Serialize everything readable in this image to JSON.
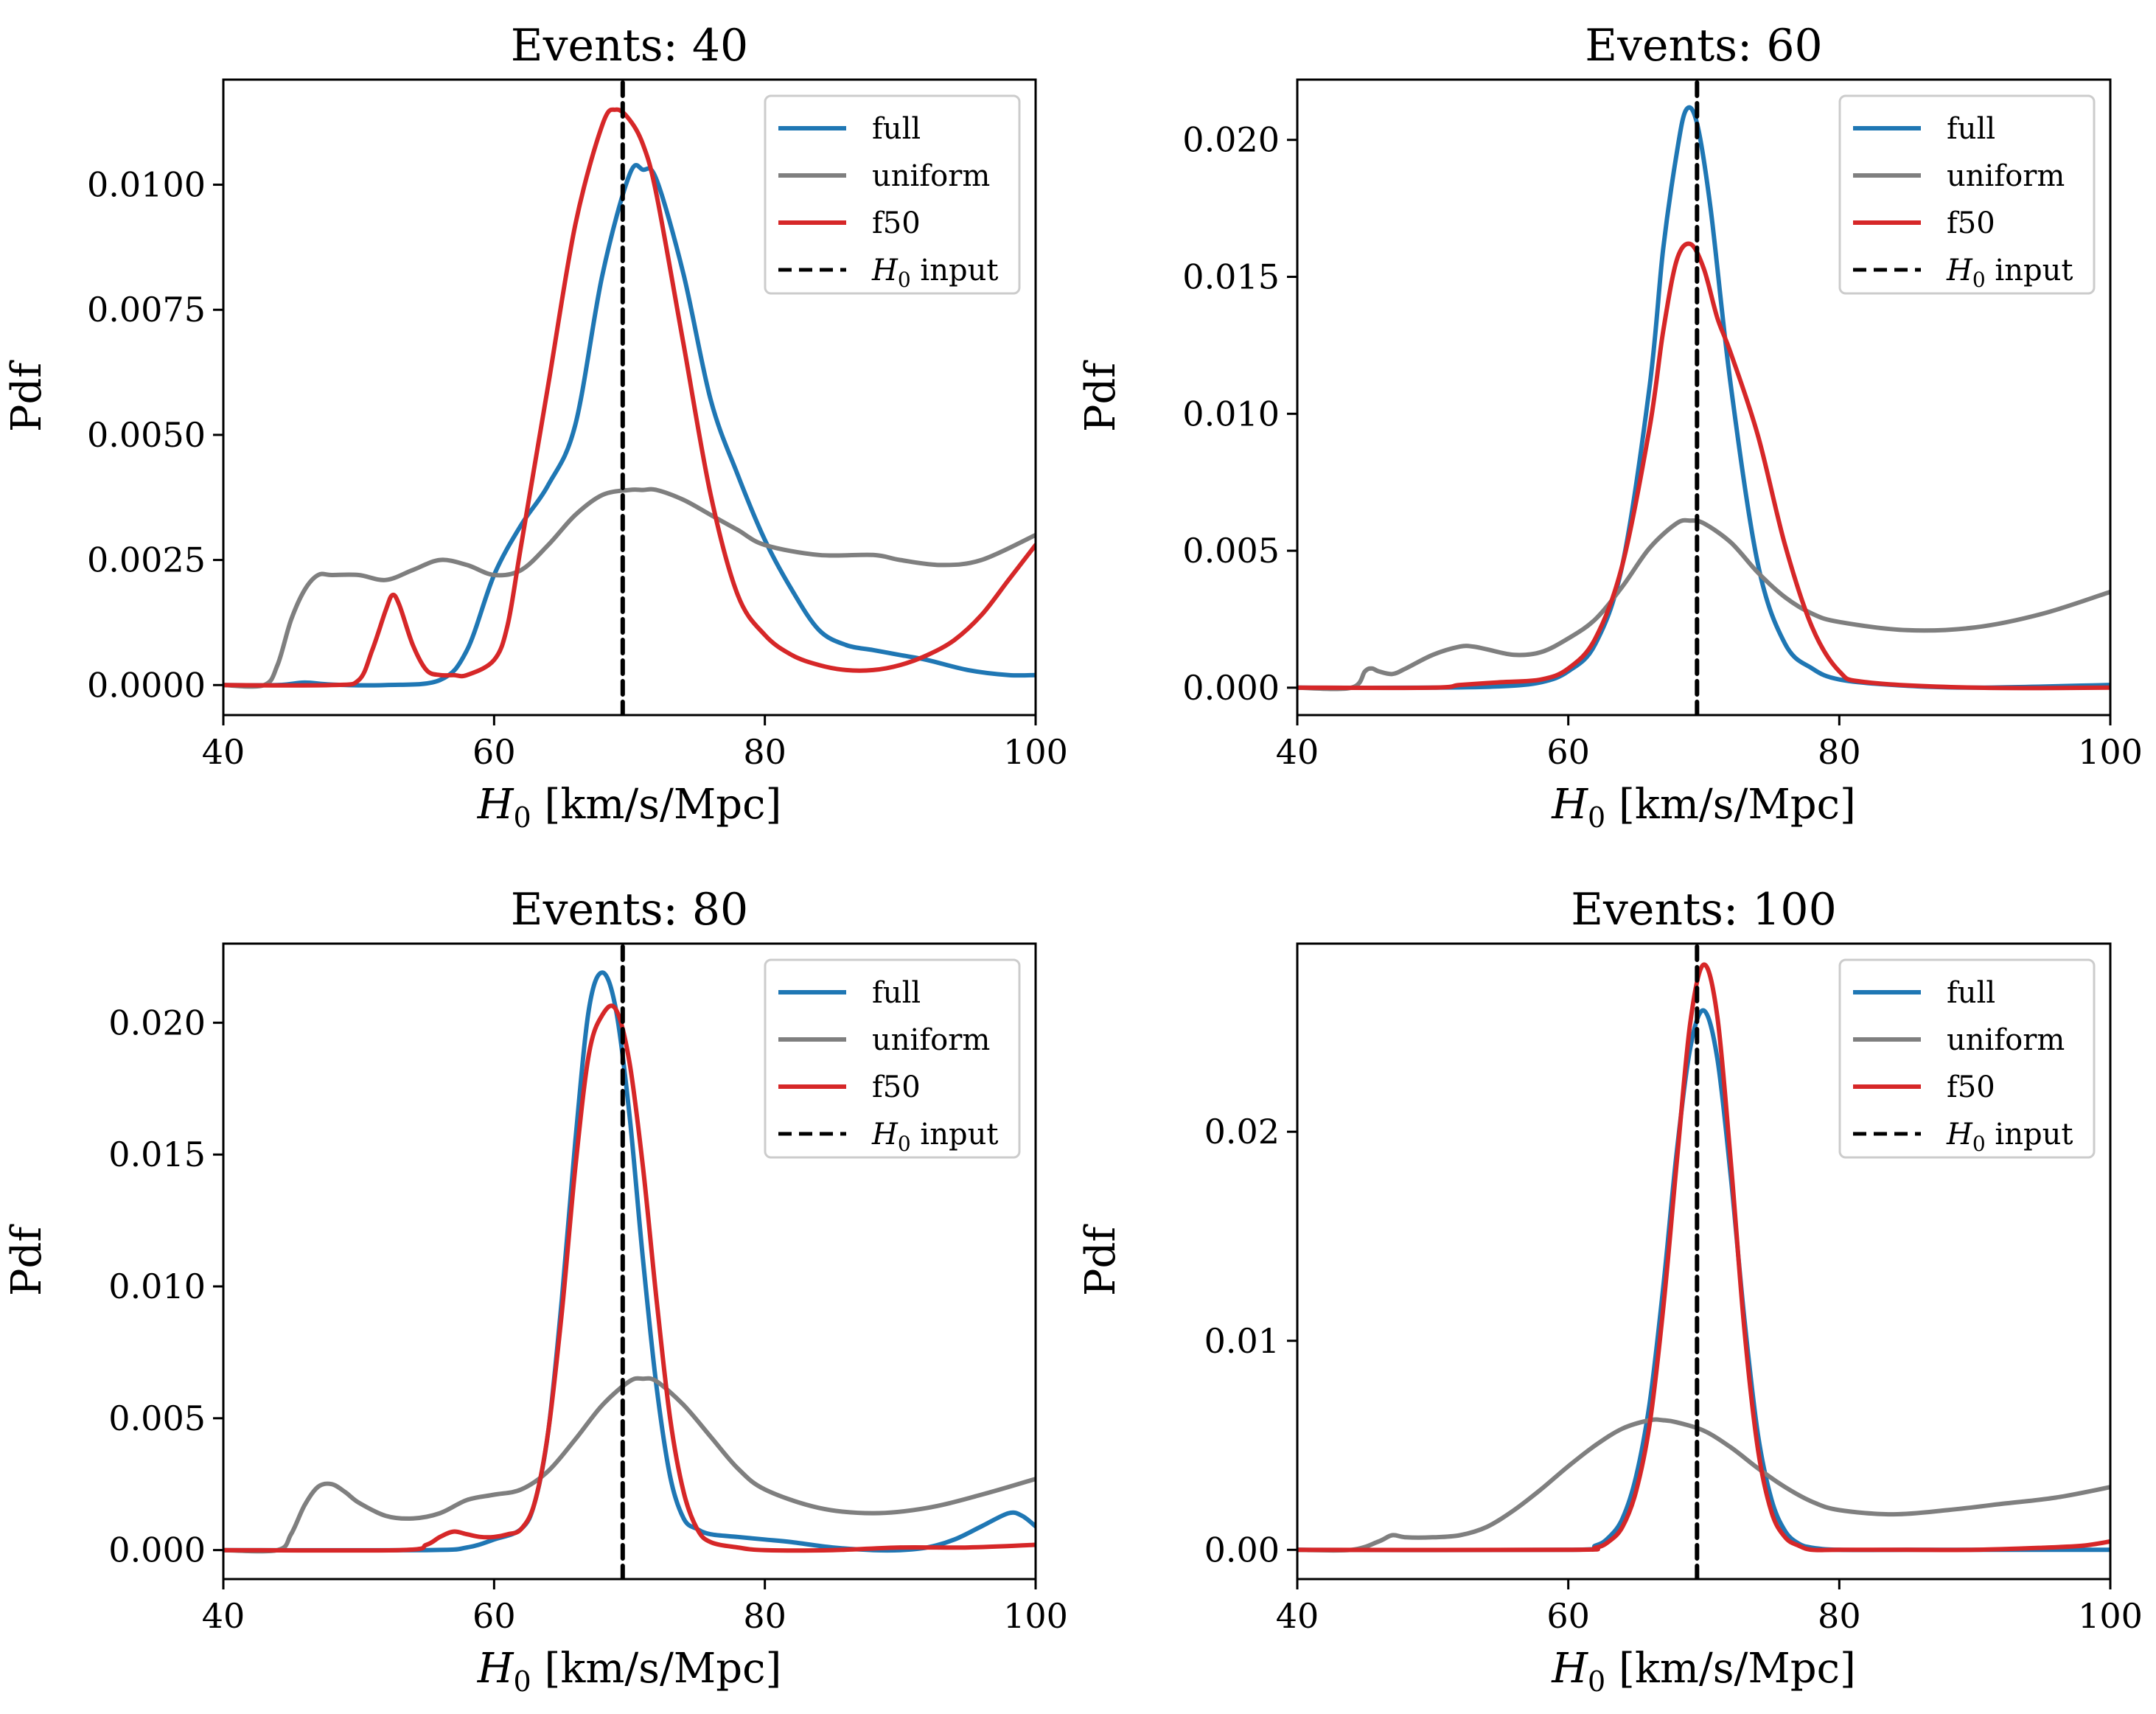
{
  "chart_data": [
    {
      "type": "line",
      "title": "Events: 40",
      "xlabel": "H_0 [km/s/Mpc]",
      "xlabel_main": "H",
      "xlabel_sub": "0",
      "xlabel_units": "[km/s/Mpc]",
      "ylabel": "Pdf",
      "xlim": [
        40,
        100
      ],
      "ylim": [
        -0.0006,
        0.0121
      ],
      "xticks": [
        40,
        60,
        80,
        100
      ],
      "xtick_labels": [
        "40",
        "60",
        "80",
        "100"
      ],
      "yticks": [
        0,
        0.0025,
        0.005,
        0.0075,
        0.01
      ],
      "ytick_labels": [
        "0.0000",
        "0.0025",
        "0.0050",
        "0.0075",
        "0.0100"
      ],
      "h0_input": 69.5,
      "legend_position": "top-right",
      "series": [
        {
          "name": "full",
          "color": "#1f77b4",
          "dashed": false,
          "x": [
            40,
            44,
            46,
            48,
            52,
            56,
            58,
            60,
            62,
            64,
            66,
            68,
            70,
            71,
            72,
            74,
            76,
            78,
            80,
            82,
            84,
            86,
            88,
            90,
            92,
            95,
            98,
            100
          ],
          "y": [
            0,
            0,
            5e-05,
            1e-05,
            0,
            0.0001,
            0.0007,
            0.0022,
            0.0032,
            0.004,
            0.0052,
            0.0082,
            0.0102,
            0.0103,
            0.0101,
            0.0082,
            0.0057,
            0.0042,
            0.0029,
            0.0019,
            0.0011,
            0.0008,
            0.0007,
            0.0006,
            0.0005,
            0.0003,
            0.0002,
            0.0002
          ]
        },
        {
          "name": "uniform",
          "color": "#7f7f7f",
          "dashed": false,
          "x": [
            40,
            43,
            44,
            45,
            46,
            47,
            48,
            50,
            52,
            54,
            56,
            58,
            60,
            62,
            64,
            66,
            68,
            70,
            71,
            72,
            74,
            76,
            78,
            80,
            84,
            88,
            90,
            93,
            96,
            100
          ],
          "y": [
            0,
            0,
            0.0004,
            0.0013,
            0.0019,
            0.0022,
            0.0022,
            0.0022,
            0.0021,
            0.0023,
            0.0025,
            0.0024,
            0.0022,
            0.0023,
            0.0028,
            0.0034,
            0.0038,
            0.0039,
            0.0039,
            0.0039,
            0.0037,
            0.0034,
            0.0031,
            0.0028,
            0.0026,
            0.0026,
            0.0025,
            0.0024,
            0.0025,
            0.003
          ]
        },
        {
          "name": "f50",
          "color": "#d62728",
          "dashed": false,
          "x": [
            40,
            48,
            50,
            51,
            52,
            52.5,
            53,
            54,
            55,
            56,
            57,
            58,
            60,
            61,
            62,
            64,
            66,
            68,
            69,
            70,
            71,
            72,
            74,
            76,
            78,
            80,
            82,
            84,
            86,
            88,
            90,
            92,
            94,
            96,
            98,
            100
          ],
          "y": [
            0,
            0,
            0.0001,
            0.0007,
            0.0015,
            0.0018,
            0.0016,
            0.0008,
            0.0003,
            0.0002,
            0.0002,
            0.0002,
            0.0005,
            0.0012,
            0.0028,
            0.006,
            0.0092,
            0.0112,
            0.0115,
            0.0113,
            0.0108,
            0.0098,
            0.0068,
            0.0038,
            0.0018,
            0.001,
            0.0006,
            0.0004,
            0.0003,
            0.0003,
            0.0004,
            0.0006,
            0.0009,
            0.0014,
            0.0021,
            0.0028
          ]
        },
        {
          "name": "H_0 input",
          "color": "#000000",
          "dashed": true,
          "x": [
            69.5,
            69.5
          ],
          "y": [
            -0.0006,
            0.0121
          ]
        }
      ]
    },
    {
      "type": "line",
      "title": "Events: 60",
      "xlabel": "H_0 [km/s/Mpc]",
      "xlabel_main": "H",
      "xlabel_sub": "0",
      "xlabel_units": "[km/s/Mpc]",
      "ylabel": "Pdf",
      "xlim": [
        40,
        100
      ],
      "ylim": [
        -0.001,
        0.0222
      ],
      "xticks": [
        40,
        60,
        80,
        100
      ],
      "xtick_labels": [
        "40",
        "60",
        "80",
        "100"
      ],
      "yticks": [
        0,
        0.005,
        0.01,
        0.015,
        0.02
      ],
      "ytick_labels": [
        "0.000",
        "0.005",
        "0.010",
        "0.015",
        "0.020"
      ],
      "h0_input": 69.5,
      "legend_position": "top-right",
      "series": [
        {
          "name": "full",
          "color": "#1f77b4",
          "dashed": false,
          "x": [
            40,
            50,
            55,
            58,
            60,
            62,
            64,
            66,
            67,
            68,
            68.7,
            69.5,
            70.5,
            72,
            74,
            76,
            78,
            80,
            84,
            90,
            100
          ],
          "y": [
            0,
            0,
            5e-05,
            0.0002,
            0.0006,
            0.0016,
            0.0045,
            0.011,
            0.016,
            0.0195,
            0.0211,
            0.0206,
            0.0175,
            0.011,
            0.0045,
            0.0016,
            0.0007,
            0.0003,
            0.0001,
            0,
            0.0001
          ]
        },
        {
          "name": "uniform",
          "color": "#7f7f7f",
          "dashed": false,
          "x": [
            40,
            44,
            45,
            45.5,
            46,
            47,
            48,
            50,
            52,
            53,
            54,
            56,
            58,
            60,
            62,
            64,
            66,
            68,
            69,
            70,
            72,
            74,
            76,
            78,
            80,
            85,
            90,
            95,
            100
          ],
          "y": [
            0,
            0,
            0.0006,
            0.0007,
            0.0006,
            0.0005,
            0.0007,
            0.0012,
            0.0015,
            0.0015,
            0.0014,
            0.0012,
            0.0013,
            0.0018,
            0.0025,
            0.0037,
            0.0051,
            0.006,
            0.0061,
            0.006,
            0.0053,
            0.0042,
            0.0033,
            0.0027,
            0.0024,
            0.0021,
            0.0022,
            0.0027,
            0.0035
          ]
        },
        {
          "name": "f50",
          "color": "#d62728",
          "dashed": false,
          "x": [
            40,
            50,
            52,
            55,
            58,
            60,
            62,
            64,
            66,
            67,
            68,
            69,
            70,
            71,
            72,
            74,
            76,
            78,
            80,
            82,
            90,
            100
          ],
          "y": [
            0,
            0,
            0.0001,
            0.0002,
            0.0003,
            0.0007,
            0.0018,
            0.0045,
            0.0095,
            0.013,
            0.0156,
            0.0162,
            0.0153,
            0.0135,
            0.0122,
            0.0092,
            0.0052,
            0.0022,
            0.0006,
            0.0002,
            0,
            0
          ]
        },
        {
          "name": "H_0 input",
          "color": "#000000",
          "dashed": true,
          "x": [
            69.5,
            69.5
          ],
          "y": [
            -0.001,
            0.0222
          ]
        }
      ]
    },
    {
      "type": "line",
      "title": "Events: 80",
      "xlabel": "H_0 [km/s/Mpc]",
      "xlabel_main": "H",
      "xlabel_sub": "0",
      "xlabel_units": "[km/s/Mpc]",
      "ylabel": "Pdf",
      "xlim": [
        40,
        100
      ],
      "ylim": [
        -0.0011,
        0.023
      ],
      "xticks": [
        40,
        60,
        80,
        100
      ],
      "xtick_labels": [
        "40",
        "60",
        "80",
        "100"
      ],
      "yticks": [
        0,
        0.005,
        0.01,
        0.015,
        0.02
      ],
      "ytick_labels": [
        "0.000",
        "0.005",
        "0.010",
        "0.015",
        "0.020"
      ],
      "h0_input": 69.5,
      "legend_position": "top-right",
      "series": [
        {
          "name": "full",
          "color": "#1f77b4",
          "dashed": false,
          "x": [
            40,
            55,
            58,
            60,
            62,
            63,
            64,
            65,
            66,
            67,
            68,
            69,
            70,
            71,
            72,
            73,
            74,
            75,
            76,
            78,
            80,
            82,
            85,
            88,
            90,
            92,
            94,
            96,
            98,
            99,
            100
          ],
          "y": [
            0,
            0,
            0.0001,
            0.0004,
            0.0008,
            0.0018,
            0.0045,
            0.0095,
            0.0155,
            0.0205,
            0.0219,
            0.0205,
            0.0165,
            0.011,
            0.0062,
            0.0028,
            0.0012,
            0.0008,
            0.0006,
            0.0005,
            0.0004,
            0.0003,
            0.0001,
            0,
            0,
            0.0001,
            0.0004,
            0.0009,
            0.0014,
            0.0013,
            0.0009
          ]
        },
        {
          "name": "uniform",
          "color": "#7f7f7f",
          "dashed": false,
          "x": [
            40,
            44,
            45,
            46,
            47,
            48,
            49,
            50,
            52,
            54,
            56,
            58,
            60,
            62,
            64,
            66,
            68,
            70,
            71,
            72,
            74,
            76,
            78,
            80,
            84,
            88,
            92,
            96,
            100
          ],
          "y": [
            0,
            0,
            0.0006,
            0.0017,
            0.0024,
            0.0025,
            0.0022,
            0.0018,
            0.0013,
            0.0012,
            0.0014,
            0.0019,
            0.0021,
            0.0023,
            0.003,
            0.0042,
            0.0055,
            0.0064,
            0.0065,
            0.0064,
            0.0055,
            0.0043,
            0.0031,
            0.0023,
            0.0016,
            0.0014,
            0.0016,
            0.0021,
            0.0027
          ]
        },
        {
          "name": "f50",
          "color": "#d62728",
          "dashed": false,
          "x": [
            40,
            53,
            55,
            56,
            57,
            58,
            59,
            60,
            61,
            62,
            63,
            64,
            65,
            66,
            67,
            68,
            69,
            70,
            71,
            72,
            73,
            74,
            75,
            76,
            78,
            80,
            85,
            90,
            95,
            100
          ],
          "y": [
            0,
            0,
            0.0002,
            0.0005,
            0.0007,
            0.0006,
            0.0005,
            0.0005,
            0.0006,
            0.0008,
            0.0018,
            0.0045,
            0.009,
            0.0145,
            0.0188,
            0.0203,
            0.0205,
            0.0185,
            0.0145,
            0.0095,
            0.005,
            0.0022,
            0.0008,
            0.0003,
            0.0001,
            0,
            0,
            0.0001,
            0.0001,
            0.0002
          ]
        },
        {
          "name": "H_0 input",
          "color": "#000000",
          "dashed": true,
          "x": [
            69.5,
            69.5
          ],
          "y": [
            -0.0011,
            0.023
          ]
        }
      ]
    },
    {
      "type": "line",
      "title": "Events: 100",
      "xlabel": "H_0 [km/s/Mpc]",
      "xlabel_main": "H",
      "xlabel_sub": "0",
      "xlabel_units": "[km/s/Mpc]",
      "ylabel": "Pdf",
      "xlim": [
        40,
        100
      ],
      "ylim": [
        -0.0014,
        0.029
      ],
      "xticks": [
        40,
        60,
        80,
        100
      ],
      "xtick_labels": [
        "40",
        "60",
        "80",
        "100"
      ],
      "yticks": [
        0,
        0.01,
        0.02
      ],
      "ytick_labels": [
        "0.00",
        "0.01",
        "0.02"
      ],
      "h0_input": 69.5,
      "legend_position": "top-right",
      "series": [
        {
          "name": "full",
          "color": "#1f77b4",
          "dashed": false,
          "x": [
            40,
            60,
            62,
            63,
            64,
            65,
            66,
            67,
            68,
            69,
            70,
            71,
            72,
            73,
            74,
            75,
            76,
            77,
            78,
            80,
            85,
            90,
            100
          ],
          "y": [
            0,
            0,
            0.0002,
            0.0006,
            0.0015,
            0.0035,
            0.007,
            0.0125,
            0.019,
            0.024,
            0.0258,
            0.0235,
            0.0178,
            0.011,
            0.0055,
            0.0024,
            0.0009,
            0.0003,
            0.0001,
            0,
            0,
            0,
            0
          ]
        },
        {
          "name": "uniform",
          "color": "#7f7f7f",
          "dashed": false,
          "x": [
            40,
            44,
            46,
            47,
            48,
            50,
            52,
            54,
            56,
            58,
            60,
            62,
            64,
            66,
            67,
            68,
            70,
            72,
            74,
            76,
            78,
            80,
            84,
            88,
            92,
            96,
            100
          ],
          "y": [
            0,
            0,
            0.0004,
            0.0007,
            0.0006,
            0.0006,
            0.0007,
            0.0011,
            0.0019,
            0.0029,
            0.004,
            0.005,
            0.0058,
            0.0062,
            0.0062,
            0.0061,
            0.0057,
            0.0049,
            0.0039,
            0.003,
            0.0023,
            0.0019,
            0.0017,
            0.0019,
            0.0022,
            0.0025,
            0.003
          ]
        },
        {
          "name": "f50",
          "color": "#d62728",
          "dashed": false,
          "x": [
            40,
            60,
            62,
            63,
            64,
            65,
            66,
            67,
            68,
            69,
            70,
            71,
            72,
            73,
            74,
            75,
            76,
            77,
            78,
            80,
            85,
            90,
            95,
            98,
            100
          ],
          "y": [
            0,
            0,
            0.0001,
            0.0004,
            0.0011,
            0.0028,
            0.006,
            0.0115,
            0.0185,
            0.0252,
            0.028,
            0.0255,
            0.0185,
            0.0105,
            0.0048,
            0.0018,
            0.0006,
            0.0002,
            0,
            0,
            0,
            0,
            0.0001,
            0.0002,
            0.0004
          ]
        },
        {
          "name": "H_0 input",
          "color": "#000000",
          "dashed": true,
          "x": [
            69.5,
            69.5
          ],
          "y": [
            -0.0014,
            0.029
          ]
        }
      ]
    }
  ]
}
